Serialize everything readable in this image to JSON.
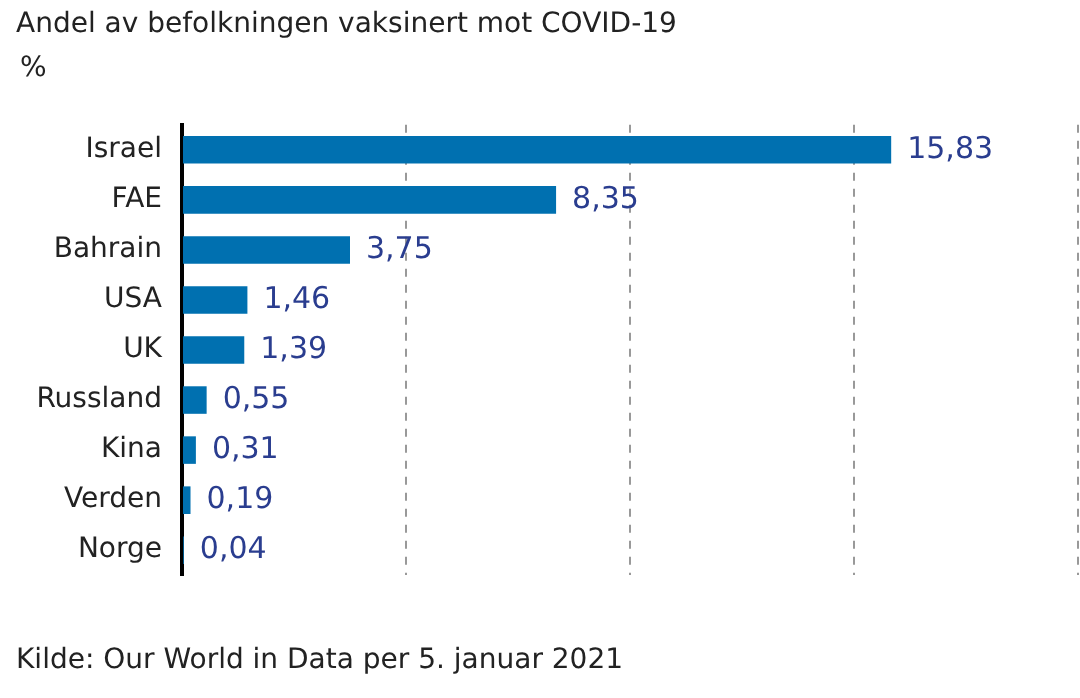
{
  "chart_data": {
    "type": "bar",
    "orientation": "horizontal",
    "title": "Andel av befolkningen vaksinert mot COVID-19",
    "ylabel": "%",
    "categories": [
      "Israel",
      "FAE",
      "Bahrain",
      "USA",
      "UK",
      "Russland",
      "Kina",
      "Verden",
      "Norge"
    ],
    "values": [
      15.83,
      8.35,
      3.75,
      1.46,
      1.39,
      0.55,
      0.31,
      0.19,
      0.04
    ],
    "value_labels": [
      "15,83",
      "8,35",
      "3,75",
      "1,46",
      "1,39",
      "0,55",
      "0,31",
      "0,19",
      "0,04"
    ],
    "color": "#0070b0",
    "xlim": [
      0,
      20
    ],
    "xticks": [
      {
        "value": 0,
        "label": null
      },
      {
        "value": 5,
        "label": null
      },
      {
        "value": 10,
        "label": null
      },
      {
        "value": 15,
        "label": null
      },
      {
        "value": 20,
        "label": null
      }
    ],
    "grid": "x",
    "tick_labels": "y",
    "legend": false,
    "annotations": [
      "Kilde: Our World in Data per 5. januar 2021"
    ]
  }
}
